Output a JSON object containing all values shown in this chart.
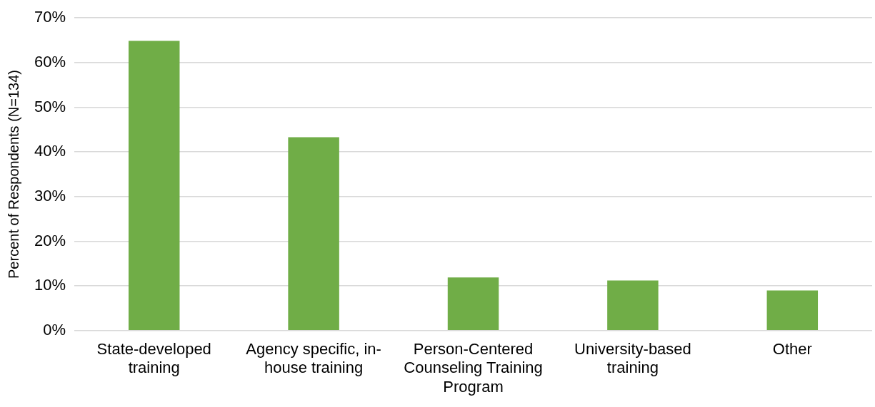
{
  "chart_data": {
    "type": "bar",
    "ylabel": "Percent of Respondents (N=134)",
    "categories": [
      "State-developed training",
      "Agency specific, in-house training",
      "Person-Centered Counseling Training Program",
      "University-based training",
      "Other"
    ],
    "values": [
      64.9,
      43.3,
      11.9,
      11.2,
      9.0
    ],
    "color": "#70ad47",
    "ylim": [
      0,
      70
    ],
    "yticks": [
      {
        "value": 0,
        "label": "0%"
      },
      {
        "value": 10,
        "label": "10%"
      },
      {
        "value": 20,
        "label": "20%"
      },
      {
        "value": 30,
        "label": "30%"
      },
      {
        "value": 40,
        "label": "40%"
      },
      {
        "value": 50,
        "label": "50%"
      },
      {
        "value": 60,
        "label": "60%"
      },
      {
        "value": 70,
        "label": "70%"
      }
    ],
    "grid": "y",
    "legend": false
  }
}
